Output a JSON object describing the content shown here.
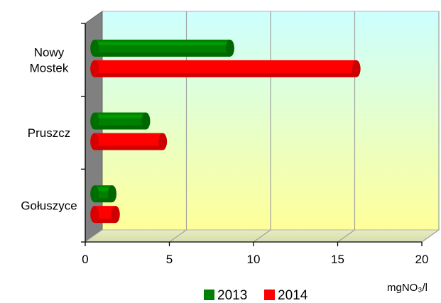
{
  "chart_data": {
    "type": "bar",
    "orientation": "horizontal",
    "title": "",
    "categories": [
      [
        "Nowy",
        "Mostek"
      ],
      [
        "Pruszcz"
      ],
      [
        "Gołuszyce"
      ]
    ],
    "series": [
      {
        "name": "2013",
        "color": "#008000",
        "values": [
          8.3,
          3.3,
          1.3
        ]
      },
      {
        "name": "2014",
        "color": "#ff0000",
        "values": [
          15.8,
          4.3,
          1.5
        ]
      }
    ],
    "xlabel": "mgNO₃/l",
    "x_ticks": [
      0,
      5,
      10,
      15,
      20
    ],
    "xlim": [
      0,
      20
    ],
    "grid": "vertical",
    "legend_position": "bottom",
    "background_gradient": [
      "#ccffff",
      "#ffff99"
    ],
    "wall_color": "#808080"
  }
}
